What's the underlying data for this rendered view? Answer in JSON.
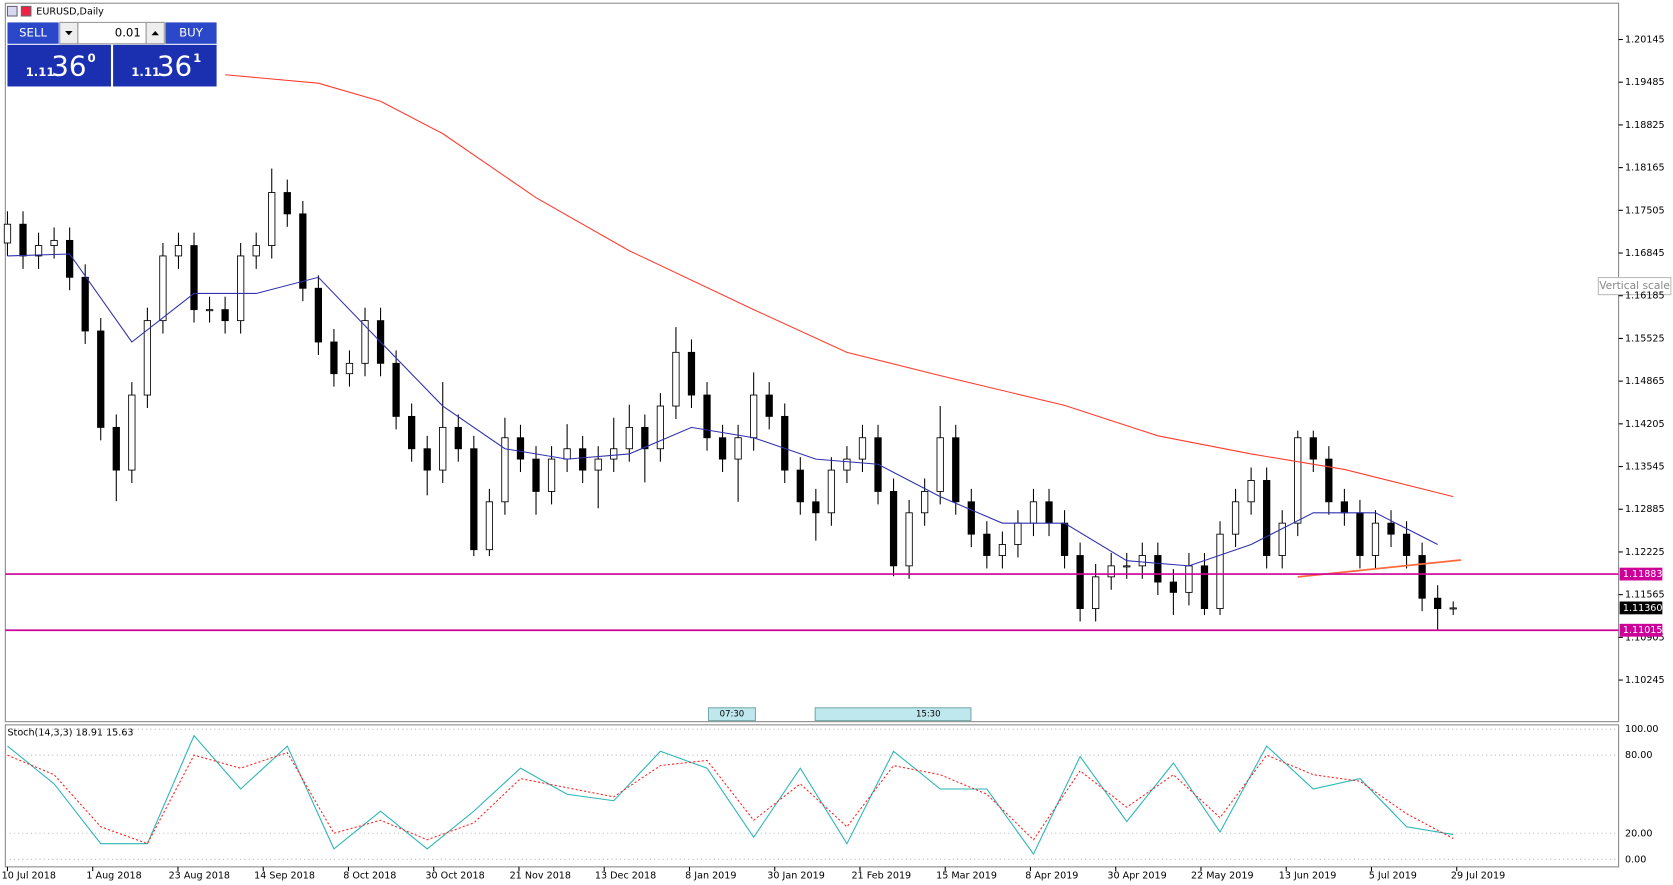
{
  "window_title": "EURUSD,Daily",
  "trade_panel": {
    "sell": "SELL",
    "buy": "BUY",
    "lot": "0.01",
    "bid": {
      "big": "1.11",
      "pips": "36",
      "frac": "0"
    },
    "ask": {
      "big": "1.11",
      "pips": "36",
      "frac": "1"
    }
  },
  "tooltip": "Vertical scale",
  "events": [
    "07:30",
    "15:30"
  ],
  "chart_data": [
    {
      "type": "candlestick",
      "categories": [
        "10 Jul 2018",
        "1 Aug 2018",
        "23 Aug 2018",
        "14 Sep 2018",
        "8 Oct 2018",
        "30 Oct 2018",
        "21 Nov 2018",
        "13 Dec 2018",
        "8 Jan 2019",
        "30 Jan 2019",
        "21 Feb 2019",
        "15 Mar 2019",
        "8 Apr 2019",
        "30 Apr 2019",
        "22 May 2019",
        "13 Jun 2019",
        "5 Jul 2019",
        "29 Jul 2019"
      ],
      "open": [
        1.17,
        1.1729,
        1.168,
        1.1696,
        1.1704,
        1.1647,
        1.1564,
        1.1415,
        1.1349,
        1.1465,
        1.158,
        1.168,
        1.1696,
        1.1597,
        1.1597,
        1.158,
        1.168,
        1.1696,
        1.1778,
        1.1745,
        1.163,
        1.1547,
        1.1498,
        1.1514,
        1.158,
        1.1514,
        1.1432,
        1.1382,
        1.1349,
        1.1415,
        1.1382,
        1.1226,
        1.13,
        1.1399,
        1.1366,
        1.1316,
        1.1366,
        1.1382,
        1.1349,
        1.1366,
        1.1382,
        1.1415,
        1.1382,
        1.1448,
        1.1531,
        1.1465,
        1.1399,
        1.1366,
        1.1399,
        1.1465,
        1.1432,
        1.1349,
        1.13,
        1.1283,
        1.1349,
        1.1366,
        1.1399,
        1.1316,
        1.1201,
        1.1283,
        1.1316,
        1.1399,
        1.13,
        1.125,
        1.1217,
        1.1234,
        1.1267,
        1.13,
        1.1267,
        1.1217,
        1.1135,
        1.1184,
        1.1201,
        1.1201,
        1.1217,
        1.1176,
        1.116,
        1.1201,
        1.1135,
        1.125,
        1.13,
        1.1333,
        1.1217,
        1.1267,
        1.1399,
        1.1366,
        1.13,
        1.1283,
        1.1217,
        1.1267,
        1.125,
        1.1217,
        1.1151,
        1.1135
      ],
      "high": [
        1.1749,
        1.1749,
        1.1716,
        1.1724,
        1.1724,
        1.1667,
        1.1584,
        1.1435,
        1.1485,
        1.16,
        1.17,
        1.1716,
        1.1716,
        1.1617,
        1.1617,
        1.17,
        1.1716,
        1.1815,
        1.1798,
        1.1765,
        1.165,
        1.1567,
        1.1534,
        1.16,
        1.16,
        1.1534,
        1.1452,
        1.1402,
        1.1485,
        1.1435,
        1.1402,
        1.132,
        1.143,
        1.1419,
        1.1386,
        1.1386,
        1.142,
        1.1402,
        1.1386,
        1.143,
        1.145,
        1.1435,
        1.1468,
        1.157,
        1.1551,
        1.1485,
        1.1419,
        1.1419,
        1.15,
        1.1485,
        1.1452,
        1.1369,
        1.132,
        1.1369,
        1.1386,
        1.1419,
        1.1419,
        1.1336,
        1.1303,
        1.1336,
        1.1448,
        1.1419,
        1.132,
        1.127,
        1.1254,
        1.1287,
        1.132,
        1.132,
        1.1287,
        1.1237,
        1.1204,
        1.1221,
        1.1221,
        1.1237,
        1.1237,
        1.1196,
        1.1221,
        1.1221,
        1.127,
        1.132,
        1.1353,
        1.1353,
        1.1287,
        1.141,
        1.141,
        1.1386,
        1.132,
        1.1303,
        1.1287,
        1.1287,
        1.127,
        1.1237,
        1.1171,
        1.1146
      ],
      "low": [
        1.168,
        1.166,
        1.166,
        1.1676,
        1.1627,
        1.1544,
        1.1395,
        1.1301,
        1.1329,
        1.1445,
        1.156,
        1.166,
        1.1577,
        1.1577,
        1.156,
        1.156,
        1.166,
        1.1676,
        1.1725,
        1.161,
        1.1527,
        1.1478,
        1.1478,
        1.1494,
        1.1494,
        1.1412,
        1.1362,
        1.131,
        1.1329,
        1.1362,
        1.1216,
        1.1216,
        1.128,
        1.1346,
        1.128,
        1.1296,
        1.1346,
        1.1329,
        1.129,
        1.1346,
        1.1362,
        1.133,
        1.1362,
        1.1428,
        1.1445,
        1.1379,
        1.1346,
        1.13,
        1.1379,
        1.1412,
        1.1329,
        1.128,
        1.124,
        1.1263,
        1.1329,
        1.1346,
        1.1296,
        1.1185,
        1.1181,
        1.1263,
        1.1296,
        1.128,
        1.123,
        1.1197,
        1.1197,
        1.1214,
        1.1247,
        1.1247,
        1.1197,
        1.1115,
        1.1115,
        1.1164,
        1.1181,
        1.1181,
        1.1156,
        1.1125,
        1.114,
        1.1125,
        1.1125,
        1.123,
        1.128,
        1.1197,
        1.1197,
        1.1247,
        1.1346,
        1.128,
        1.1263,
        1.1197,
        1.1197,
        1.123,
        1.1197,
        1.1131,
        1.1102,
        1.1125
      ],
      "close": [
        1.1729,
        1.168,
        1.1696,
        1.1704,
        1.1647,
        1.1564,
        1.1415,
        1.1349,
        1.1465,
        1.158,
        1.168,
        1.1696,
        1.1597,
        1.1597,
        1.158,
        1.168,
        1.1696,
        1.1778,
        1.1745,
        1.163,
        1.1547,
        1.1498,
        1.1514,
        1.158,
        1.1514,
        1.1432,
        1.1382,
        1.1349,
        1.1415,
        1.1382,
        1.1226,
        1.13,
        1.1399,
        1.1366,
        1.1316,
        1.1366,
        1.1382,
        1.1349,
        1.1366,
        1.1382,
        1.1415,
        1.1382,
        1.1448,
        1.1531,
        1.1465,
        1.1399,
        1.1366,
        1.1399,
        1.1465,
        1.1432,
        1.1349,
        1.13,
        1.1283,
        1.1349,
        1.1366,
        1.1399,
        1.1316,
        1.1201,
        1.1283,
        1.1316,
        1.1399,
        1.13,
        1.125,
        1.1217,
        1.1234,
        1.1267,
        1.13,
        1.1267,
        1.1217,
        1.1135,
        1.1184,
        1.1201,
        1.1201,
        1.1217,
        1.1176,
        1.116,
        1.1201,
        1.1135,
        1.125,
        1.13,
        1.1333,
        1.1217,
        1.1267,
        1.1399,
        1.1366,
        1.13,
        1.1283,
        1.1217,
        1.1267,
        1.125,
        1.1217,
        1.1151,
        1.1135,
        1.1136
      ],
      "overlays": [
        {
          "color": "#3030b0",
          "x": [
            0,
            4,
            8,
            12,
            16,
            20,
            24,
            28,
            32,
            36,
            40,
            44,
            48,
            52,
            56,
            60,
            64,
            68,
            72,
            76,
            80,
            84,
            88,
            92
          ],
          "values": [
            1.168,
            1.1683,
            1.1547,
            1.1622,
            1.1622,
            1.1647,
            1.1547,
            1.1448,
            1.1382,
            1.1366,
            1.1374,
            1.1415,
            1.1399,
            1.1366,
            1.1358,
            1.1308,
            1.1267,
            1.1267,
            1.1209,
            1.1201,
            1.1234,
            1.1283,
            1.1283,
            1.1234
          ]
        },
        {
          "color": "#ff3b2f",
          "x": [
            14,
            20,
            24,
            28,
            34,
            40,
            48,
            54,
            60,
            68,
            74,
            80,
            86,
            93
          ],
          "values": [
            1.196,
            1.1947,
            1.1919,
            1.1869,
            1.177,
            1.1688,
            1.1597,
            1.1531,
            1.1495,
            1.1449,
            1.1402,
            1.1374,
            1.135,
            1.1308
          ]
        },
        {
          "color": "#ff6a3a",
          "x": [
            83,
            93.5
          ],
          "values": [
            1.1184,
            1.121
          ]
        }
      ],
      "levels": [
        1.11883,
        1.11015
      ],
      "level_color": "#cc0099",
      "last_price": {
        "value": 1.1136,
        "label": "1.11360"
      },
      "ylim": [
        1.09602,
        1.20706
      ],
      "yticks": [
        1.20145,
        1.19485,
        1.18825,
        1.18165,
        1.17505,
        1.16845,
        1.16185,
        1.15525,
        1.14865,
        1.14205,
        1.13545,
        1.12885,
        1.12225,
        1.11565,
        1.10905,
        1.10245
      ]
    },
    {
      "type": "line",
      "title": "Stoch(14,3,3) 18.91 15.63",
      "x": [
        0,
        3,
        6,
        9,
        12,
        15,
        18,
        21,
        24,
        27,
        30,
        33,
        36,
        39,
        42,
        45,
        48,
        51,
        54,
        57,
        60,
        63,
        66,
        69,
        72,
        75,
        78,
        81,
        84,
        87,
        90,
        93
      ],
      "series": [
        {
          "color": "#2ab5b5",
          "dash": false,
          "values": [
            87,
            58,
            12,
            12,
            95,
            54,
            87,
            8,
            37,
            8,
            37,
            70,
            50,
            45,
            83,
            70,
            17,
            70,
            12,
            83,
            54,
            54,
            4,
            79,
            29,
            74,
            21,
            87,
            54,
            62,
            25,
            19
          ]
        },
        {
          "color": "#ff2020",
          "dash": true,
          "values": [
            80,
            65,
            25,
            12,
            80,
            70,
            82,
            20,
            30,
            15,
            28,
            62,
            55,
            48,
            72,
            76,
            30,
            58,
            25,
            72,
            65,
            50,
            15,
            68,
            40,
            65,
            32,
            80,
            65,
            60,
            35,
            16
          ]
        }
      ],
      "ylim": [
        -5.8,
        103.3
      ],
      "yticks": [
        {
          "value": 100,
          "label": "100.00"
        },
        {
          "value": 80,
          "label": "80.00"
        },
        {
          "value": 20,
          "label": "20.00"
        },
        {
          "value": 0,
          "label": "0.00"
        }
      ],
      "grid": true
    }
  ]
}
